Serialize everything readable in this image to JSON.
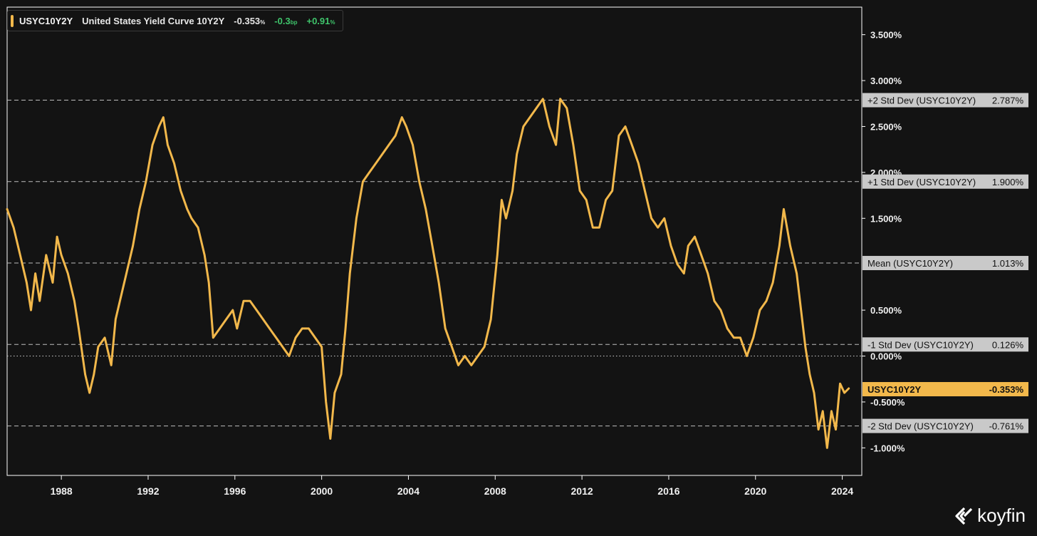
{
  "legend": {
    "ticker": "USYC10Y2Y",
    "name": "United States Yield Curve 10Y2Y",
    "value": "-0.353",
    "value_unit": "%",
    "change": "-0.3",
    "change_unit": "bp",
    "change_pct": "+0.91",
    "change_pct_unit": "%"
  },
  "brand": {
    "name": "koyfin"
  },
  "colors": {
    "background": "#131313",
    "series": "#f2b84b",
    "band_label_bg": "#c9c9c9",
    "positive": "#3fc46b"
  },
  "chart_data": {
    "type": "line",
    "xlim": [
      1985.5,
      2024.9
    ],
    "ylim": [
      -1.3,
      3.8
    ],
    "x_ticks": [
      "1988",
      "1992",
      "1996",
      "2000",
      "2004",
      "2008",
      "2012",
      "2016",
      "2020",
      "2024"
    ],
    "y_ticks": [
      "3.500%",
      "3.000%",
      "2.500%",
      "2.000%",
      "1.500%",
      "0.500%",
      "0.000%",
      "-0.500%",
      "-1.000%"
    ],
    "zero_line": true,
    "reference_lines": [
      {
        "label": "+2 Std Dev (USYC10Y2Y)",
        "value": 2.787,
        "value_label": "2.787%"
      },
      {
        "label": "+1 Std Dev (USYC10Y2Y)",
        "value": 1.9,
        "value_label": "1.900%"
      },
      {
        "label": "Mean (USYC10Y2Y)",
        "value": 1.013,
        "value_label": "1.013%"
      },
      {
        "label": "-1 Std Dev (USYC10Y2Y)",
        "value": 0.126,
        "value_label": "0.126%"
      },
      {
        "label": "-2 Std Dev (USYC10Y2Y)",
        "value": -0.761,
        "value_label": "-0.761%"
      }
    ],
    "current": {
      "label": "USYC10Y2Y",
      "value": -0.353,
      "value_label": "-0.353%"
    },
    "series": [
      {
        "name": "USYC10Y2Y",
        "points": [
          [
            1985.5,
            1.6
          ],
          [
            1985.8,
            1.4
          ],
          [
            1986.1,
            1.1
          ],
          [
            1986.4,
            0.8
          ],
          [
            1986.6,
            0.5
          ],
          [
            1986.8,
            0.9
          ],
          [
            1987.0,
            0.6
          ],
          [
            1987.3,
            1.1
          ],
          [
            1987.6,
            0.8
          ],
          [
            1987.8,
            1.3
          ],
          [
            1988.0,
            1.1
          ],
          [
            1988.3,
            0.9
          ],
          [
            1988.6,
            0.6
          ],
          [
            1988.8,
            0.3
          ],
          [
            1989.1,
            -0.2
          ],
          [
            1989.3,
            -0.4
          ],
          [
            1989.5,
            -0.2
          ],
          [
            1989.7,
            0.1
          ],
          [
            1990.0,
            0.2
          ],
          [
            1990.3,
            -0.1
          ],
          [
            1990.5,
            0.4
          ],
          [
            1990.8,
            0.7
          ],
          [
            1991.0,
            0.9
          ],
          [
            1991.3,
            1.2
          ],
          [
            1991.6,
            1.6
          ],
          [
            1991.9,
            1.9
          ],
          [
            1992.2,
            2.3
          ],
          [
            1992.5,
            2.5
          ],
          [
            1992.7,
            2.6
          ],
          [
            1992.9,
            2.3
          ],
          [
            1993.2,
            2.1
          ],
          [
            1993.5,
            1.8
          ],
          [
            1993.8,
            1.6
          ],
          [
            1994.0,
            1.5
          ],
          [
            1994.3,
            1.4
          ],
          [
            1994.6,
            1.1
          ],
          [
            1994.8,
            0.8
          ],
          [
            1995.0,
            0.2
          ],
          [
            1995.3,
            0.3
          ],
          [
            1995.6,
            0.4
          ],
          [
            1995.9,
            0.5
          ],
          [
            1996.1,
            0.3
          ],
          [
            1996.4,
            0.6
          ],
          [
            1996.7,
            0.6
          ],
          [
            1997.0,
            0.5
          ],
          [
            1997.3,
            0.4
          ],
          [
            1997.6,
            0.3
          ],
          [
            1997.9,
            0.2
          ],
          [
            1998.2,
            0.1
          ],
          [
            1998.5,
            0.0
          ],
          [
            1998.8,
            0.2
          ],
          [
            1999.1,
            0.3
          ],
          [
            1999.4,
            0.3
          ],
          [
            1999.7,
            0.2
          ],
          [
            2000.0,
            0.1
          ],
          [
            2000.2,
            -0.5
          ],
          [
            2000.4,
            -0.9
          ],
          [
            2000.6,
            -0.4
          ],
          [
            2000.9,
            -0.2
          ],
          [
            2001.1,
            0.3
          ],
          [
            2001.3,
            0.9
          ],
          [
            2001.6,
            1.5
          ],
          [
            2001.9,
            1.9
          ],
          [
            2002.2,
            2.0
          ],
          [
            2002.5,
            2.1
          ],
          [
            2002.8,
            2.2
          ],
          [
            2003.1,
            2.3
          ],
          [
            2003.4,
            2.4
          ],
          [
            2003.7,
            2.6
          ],
          [
            2003.9,
            2.5
          ],
          [
            2004.2,
            2.3
          ],
          [
            2004.5,
            1.9
          ],
          [
            2004.8,
            1.6
          ],
          [
            2005.1,
            1.2
          ],
          [
            2005.4,
            0.8
          ],
          [
            2005.7,
            0.3
          ],
          [
            2006.0,
            0.1
          ],
          [
            2006.3,
            -0.1
          ],
          [
            2006.6,
            0.0
          ],
          [
            2006.9,
            -0.1
          ],
          [
            2007.2,
            0.0
          ],
          [
            2007.5,
            0.1
          ],
          [
            2007.8,
            0.4
          ],
          [
            2008.1,
            1.1
          ],
          [
            2008.3,
            1.7
          ],
          [
            2008.5,
            1.5
          ],
          [
            2008.8,
            1.8
          ],
          [
            2009.0,
            2.2
          ],
          [
            2009.3,
            2.5
          ],
          [
            2009.6,
            2.6
          ],
          [
            2009.9,
            2.7
          ],
          [
            2010.2,
            2.8
          ],
          [
            2010.5,
            2.5
          ],
          [
            2010.8,
            2.3
          ],
          [
            2011.0,
            2.8
          ],
          [
            2011.3,
            2.7
          ],
          [
            2011.6,
            2.3
          ],
          [
            2011.9,
            1.8
          ],
          [
            2012.2,
            1.7
          ],
          [
            2012.5,
            1.4
          ],
          [
            2012.8,
            1.4
          ],
          [
            2013.1,
            1.7
          ],
          [
            2013.4,
            1.8
          ],
          [
            2013.7,
            2.4
          ],
          [
            2014.0,
            2.5
          ],
          [
            2014.3,
            2.3
          ],
          [
            2014.6,
            2.1
          ],
          [
            2014.9,
            1.8
          ],
          [
            2015.2,
            1.5
          ],
          [
            2015.5,
            1.4
          ],
          [
            2015.8,
            1.5
          ],
          [
            2016.1,
            1.2
          ],
          [
            2016.4,
            1.0
          ],
          [
            2016.7,
            0.9
          ],
          [
            2016.9,
            1.2
          ],
          [
            2017.2,
            1.3
          ],
          [
            2017.5,
            1.1
          ],
          [
            2017.8,
            0.9
          ],
          [
            2018.1,
            0.6
          ],
          [
            2018.4,
            0.5
          ],
          [
            2018.7,
            0.3
          ],
          [
            2019.0,
            0.2
          ],
          [
            2019.3,
            0.2
          ],
          [
            2019.6,
            0.0
          ],
          [
            2019.9,
            0.2
          ],
          [
            2020.2,
            0.5
          ],
          [
            2020.5,
            0.6
          ],
          [
            2020.8,
            0.8
          ],
          [
            2021.1,
            1.2
          ],
          [
            2021.3,
            1.6
          ],
          [
            2021.6,
            1.2
          ],
          [
            2021.9,
            0.9
          ],
          [
            2022.1,
            0.5
          ],
          [
            2022.3,
            0.1
          ],
          [
            2022.5,
            -0.2
          ],
          [
            2022.7,
            -0.4
          ],
          [
            2022.9,
            -0.8
          ],
          [
            2023.1,
            -0.6
          ],
          [
            2023.3,
            -1.0
          ],
          [
            2023.5,
            -0.6
          ],
          [
            2023.7,
            -0.8
          ],
          [
            2023.9,
            -0.3
          ],
          [
            2024.1,
            -0.4
          ],
          [
            2024.3,
            -0.353
          ]
        ]
      }
    ]
  }
}
